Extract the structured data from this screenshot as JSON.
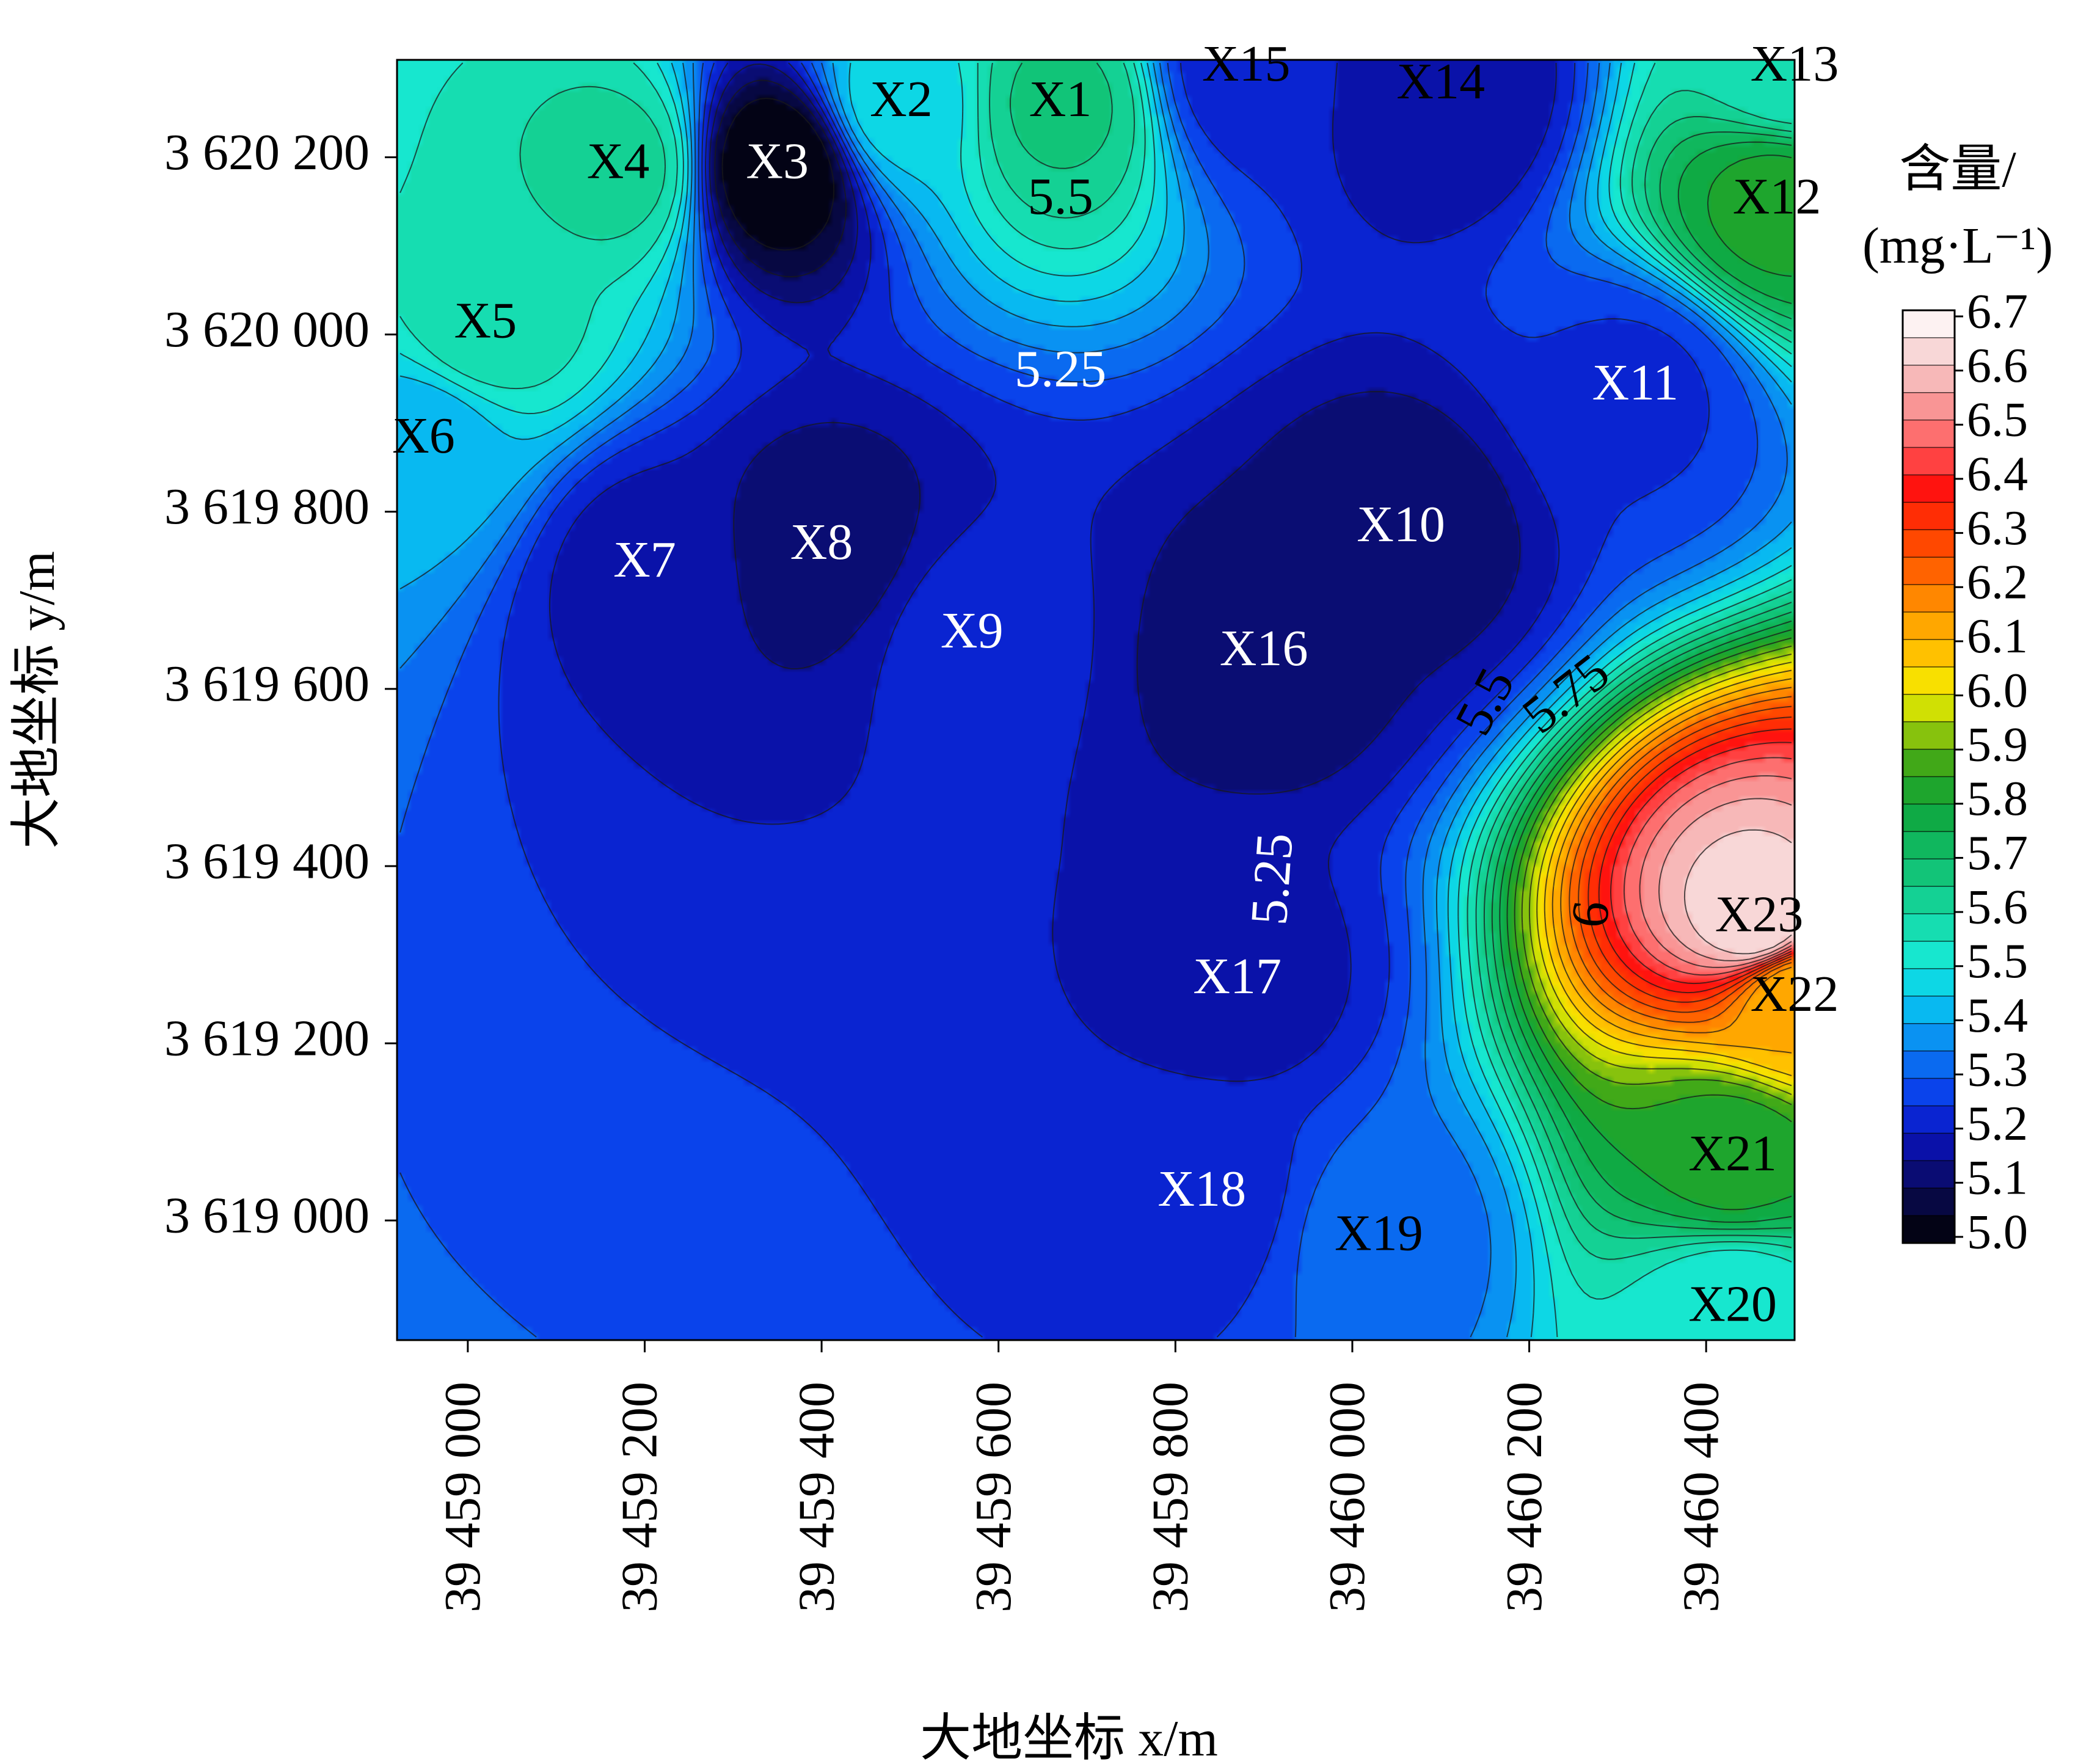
{
  "chart_data": {
    "type": "heatmap",
    "subtype": "contour",
    "title": "",
    "xlabel": "大地坐标 x/m",
    "ylabel": "大地坐标 y/m",
    "xlim": [
      39458920,
      39460500
    ],
    "ylim": [
      3618865,
      3620310
    ],
    "xticks": [
      {
        "value": 39459000,
        "label": "39 459 000"
      },
      {
        "value": 39459200,
        "label": "39 459 200"
      },
      {
        "value": 39459400,
        "label": "39 459 400"
      },
      {
        "value": 39459600,
        "label": "39 459 600"
      },
      {
        "value": 39459800,
        "label": "39 459 800"
      },
      {
        "value": 39460000,
        "label": "39 460 000"
      },
      {
        "value": 39460200,
        "label": "39 460 200"
      },
      {
        "value": 39460400,
        "label": "39 460 400"
      }
    ],
    "yticks": [
      {
        "value": 3620200,
        "label": "3 620 200"
      },
      {
        "value": 3620000,
        "label": "3 620 000"
      },
      {
        "value": 3619800,
        "label": "3 619 800"
      },
      {
        "value": 3619600,
        "label": "3 619 600"
      },
      {
        "value": 3619400,
        "label": "3 619 400"
      },
      {
        "value": 3619200,
        "label": "3 619 200"
      },
      {
        "value": 3619000,
        "label": "3 619 000"
      }
    ],
    "colorbar": {
      "title_line1": "含量/",
      "title_line2": "(mg·L⁻¹)",
      "min": 5.0,
      "max": 6.7,
      "labels": [
        "6.7",
        "6.6",
        "6.5",
        "6.4",
        "6.3",
        "6.2",
        "6.1",
        "6.0",
        "5.9",
        "5.8",
        "5.7",
        "5.6",
        "5.5",
        "5.4",
        "5.3",
        "5.2",
        "5.1",
        "5.0"
      ],
      "stops": [
        {
          "v": 5.0,
          "c": "#000000"
        },
        {
          "v": 5.05,
          "c": "#06062a"
        },
        {
          "v": 5.12,
          "c": "#0a0c6e"
        },
        {
          "v": 5.2,
          "c": "#0a14c4"
        },
        {
          "v": 5.28,
          "c": "#0a46ee"
        },
        {
          "v": 5.36,
          "c": "#0a86f2"
        },
        {
          "v": 5.45,
          "c": "#07cdf0"
        },
        {
          "v": 5.52,
          "c": "#17e8d2"
        },
        {
          "v": 5.6,
          "c": "#16d8a2"
        },
        {
          "v": 5.7,
          "c": "#10bd6a"
        },
        {
          "v": 5.8,
          "c": "#0fa438"
        },
        {
          "v": 5.87,
          "c": "#3aa619"
        },
        {
          "v": 5.93,
          "c": "#8ec40c"
        },
        {
          "v": 6.0,
          "c": "#f4f000"
        },
        {
          "v": 6.07,
          "c": "#ffc400"
        },
        {
          "v": 6.15,
          "c": "#ff9a00"
        },
        {
          "v": 6.22,
          "c": "#ff6600"
        },
        {
          "v": 6.3,
          "c": "#ff3a00"
        },
        {
          "v": 6.38,
          "c": "#ff1010"
        },
        {
          "v": 6.45,
          "c": "#ff5c5c"
        },
        {
          "v": 6.55,
          "c": "#f7a8a8"
        },
        {
          "v": 6.62,
          "c": "#f8d4d4"
        },
        {
          "v": 6.7,
          "c": "#ffffff"
        }
      ]
    },
    "contour_labels": [
      {
        "text": "5.5",
        "x": 39459670,
        "y": 3620150,
        "angle": 0,
        "color": "#000000"
      },
      {
        "text": "5.25",
        "x": 39459670,
        "y": 3619955,
        "angle": 0,
        "color": "#ffffff"
      },
      {
        "text": "5.5",
        "x": 39460155,
        "y": 3619583,
        "angle": -62,
        "color": "#000000"
      },
      {
        "text": "5.75",
        "x": 39460245,
        "y": 3619590,
        "angle": -38,
        "color": "#000000"
      },
      {
        "text": "5.25",
        "x": 39459915,
        "y": 3619385,
        "angle": -86,
        "color": "#ffffff"
      },
      {
        "text": "6",
        "x": 39460275,
        "y": 3619345,
        "angle": -84,
        "color": "#000000"
      }
    ],
    "sample_points": [
      {
        "label": "X1",
        "x": 39459670,
        "y": 3620260,
        "value": 5.66,
        "label_color": "#000000"
      },
      {
        "label": "X2",
        "x": 39459490,
        "y": 3620260,
        "value": 5.48,
        "label_color": "#000000"
      },
      {
        "label": "X3",
        "x": 39459350,
        "y": 3620190,
        "value": 5.0,
        "label_color": "#ffffff"
      },
      {
        "label": "X4",
        "x": 39459170,
        "y": 3620190,
        "value": 5.62,
        "label_color": "#000000"
      },
      {
        "label": "X5",
        "x": 39459020,
        "y": 3620010,
        "value": 5.58,
        "label_color": "#000000"
      },
      {
        "label": "X6",
        "x": 39458950,
        "y": 3619880,
        "value": 5.42,
        "label_color": "#000000"
      },
      {
        "label": "X7",
        "x": 39459200,
        "y": 3619740,
        "value": 5.18,
        "label_color": "#ffffff"
      },
      {
        "label": "X8",
        "x": 39459400,
        "y": 3619760,
        "value": 5.12,
        "label_color": "#ffffff"
      },
      {
        "label": "X9",
        "x": 39459570,
        "y": 3619660,
        "value": 5.22,
        "label_color": "#ffffff"
      },
      {
        "label": "X10",
        "x": 39460055,
        "y": 3619780,
        "value": 5.12,
        "label_color": "#ffffff"
      },
      {
        "label": "X11",
        "x": 39460320,
        "y": 3619940,
        "value": 5.24,
        "label_color": "#ffffff"
      },
      {
        "label": "X12",
        "x": 39460480,
        "y": 3620150,
        "value": 5.82,
        "label_color": "#000000"
      },
      {
        "label": "X13",
        "x": 39460500,
        "y": 3620300,
        "value": 5.55,
        "label_color": "#000000"
      },
      {
        "label": "X14",
        "x": 39460100,
        "y": 3620280,
        "value": 5.15,
        "label_color": "#000000"
      },
      {
        "label": "X15",
        "x": 39459880,
        "y": 3620300,
        "value": 5.22,
        "label_color": "#000000"
      },
      {
        "label": "X16",
        "x": 39459900,
        "y": 3619640,
        "value": 5.12,
        "label_color": "#ffffff"
      },
      {
        "label": "X17",
        "x": 39459870,
        "y": 3619270,
        "value": 5.18,
        "label_color": "#ffffff"
      },
      {
        "label": "X18",
        "x": 39459830,
        "y": 3619030,
        "value": 5.22,
        "label_color": "#ffffff"
      },
      {
        "label": "X19",
        "x": 39460030,
        "y": 3618980,
        "value": 5.32,
        "label_color": "#000000"
      },
      {
        "label": "X20",
        "x": 39460430,
        "y": 3618900,
        "value": 5.5,
        "label_color": "#000000"
      },
      {
        "label": "X21",
        "x": 39460430,
        "y": 3619070,
        "value": 5.82,
        "label_color": "#000000"
      },
      {
        "label": "X22",
        "x": 39460500,
        "y": 3619250,
        "value": 6.1,
        "label_color": "#000000"
      },
      {
        "label": "X23",
        "x": 39460460,
        "y": 3619340,
        "value": 6.65,
        "label_color": "#000000"
      }
    ]
  }
}
